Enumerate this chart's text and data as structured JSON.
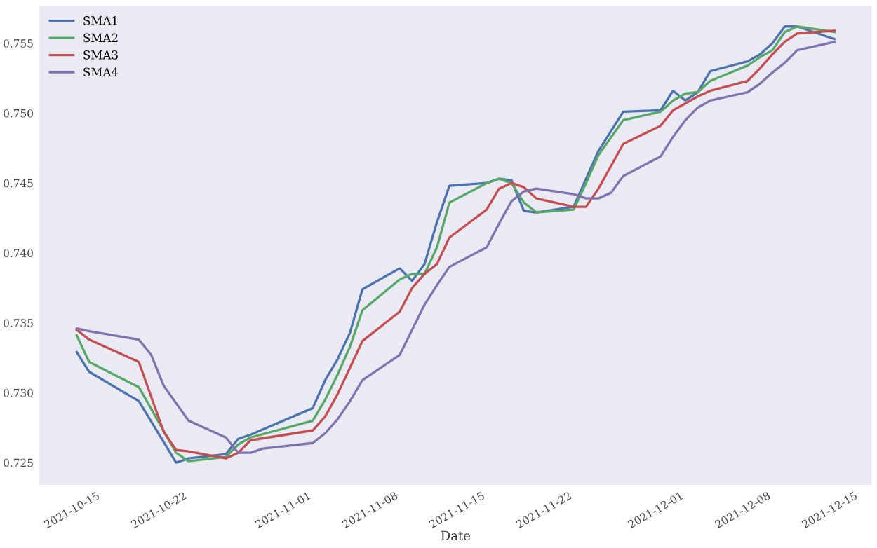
{
  "chart_data": {
    "type": "line",
    "xlabel": "Date",
    "legend": "top left",
    "grid": false,
    "xlim": [
      "2021-10-10",
      "2021-12-16"
    ],
    "ylim": [
      0.7234,
      0.7577
    ],
    "xticks": [
      "2021-10-15",
      "2021-10-22",
      "2021-11-01",
      "2021-11-08",
      "2021-11-15",
      "2021-11-22",
      "2021-12-01",
      "2021-12-08",
      "2021-12-15"
    ],
    "yticks": [
      0.725,
      {
        "value": 0.73,
        "label": "0.730"
      },
      0.735,
      {
        "value": 0.74,
        "label": "0.740"
      },
      0.745,
      {
        "value": 0.75,
        "label": "0.750"
      },
      0.755
    ],
    "series": [
      {
        "name": "SMA1",
        "color": "#4c72b0",
        "x": [
          "2021-10-13",
          "2021-10-14",
          "2021-10-18",
          "2021-10-21",
          "2021-10-22",
          "2021-10-25",
          "2021-10-26",
          "2021-10-27",
          "2021-11-01",
          "2021-11-02",
          "2021-11-03",
          "2021-11-04",
          "2021-11-05",
          "2021-11-08",
          "2021-11-09",
          "2021-11-10",
          "2021-11-11",
          "2021-11-12",
          "2021-11-15",
          "2021-11-16",
          "2021-11-17",
          "2021-11-18",
          "2021-11-19",
          "2021-11-22",
          "2021-11-23",
          "2021-11-24",
          "2021-11-26",
          "2021-11-29",
          "2021-11-30",
          "2021-12-01",
          "2021-12-02",
          "2021-12-03",
          "2021-12-06",
          "2021-12-07",
          "2021-12-08",
          "2021-12-09",
          "2021-12-10",
          "2021-12-13"
        ],
        "values": [
          0.7329,
          0.7315,
          0.7294,
          0.725,
          0.7253,
          0.7256,
          0.7267,
          0.727,
          0.7289,
          0.7309,
          0.7324,
          0.7343,
          0.7374,
          0.7389,
          0.738,
          0.7392,
          0.7422,
          0.7448,
          0.745,
          0.7453,
          0.7452,
          0.743,
          0.7429,
          0.7433,
          0.7453,
          0.7473,
          0.7501,
          0.7502,
          0.7516,
          0.7509,
          0.7515,
          0.753,
          0.7537,
          0.7542,
          0.755,
          0.7562,
          0.7562,
          0.7553
        ]
      },
      {
        "name": "SMA2",
        "color": "#55a868",
        "x": [
          "2021-10-13",
          "2021-10-14",
          "2021-10-18",
          "2021-10-21",
          "2021-10-22",
          "2021-10-25",
          "2021-10-26",
          "2021-10-27",
          "2021-11-01",
          "2021-11-02",
          "2021-11-03",
          "2021-11-04",
          "2021-11-05",
          "2021-11-08",
          "2021-11-09",
          "2021-11-10",
          "2021-11-11",
          "2021-11-12",
          "2021-11-15",
          "2021-11-16",
          "2021-11-17",
          "2021-11-18",
          "2021-11-19",
          "2021-11-22",
          "2021-11-23",
          "2021-11-24",
          "2021-11-26",
          "2021-11-29",
          "2021-11-30",
          "2021-12-01",
          "2021-12-02",
          "2021-12-03",
          "2021-12-06",
          "2021-12-07",
          "2021-12-08",
          "2021-12-09",
          "2021-12-10",
          "2021-12-13"
        ],
        "values": [
          0.7341,
          0.7322,
          0.7304,
          0.7257,
          0.7251,
          0.7254,
          0.7263,
          0.7268,
          0.728,
          0.7295,
          0.7313,
          0.7333,
          0.7359,
          0.7381,
          0.7385,
          0.7385,
          0.7404,
          0.7436,
          0.745,
          0.7453,
          0.745,
          0.7436,
          0.7429,
          0.7431,
          0.745,
          0.747,
          0.7495,
          0.7501,
          0.7509,
          0.7514,
          0.7515,
          0.7523,
          0.7534,
          0.754,
          0.7545,
          0.7558,
          0.7562,
          0.7558
        ]
      },
      {
        "name": "SMA3",
        "color": "#c44e52",
        "x": [
          "2021-10-13",
          "2021-10-14",
          "2021-10-18",
          "2021-10-20",
          "2021-10-21",
          "2021-10-22",
          "2021-10-25",
          "2021-10-26",
          "2021-10-27",
          "2021-11-01",
          "2021-11-02",
          "2021-11-03",
          "2021-11-04",
          "2021-11-05",
          "2021-11-08",
          "2021-11-09",
          "2021-11-10",
          "2021-11-11",
          "2021-11-12",
          "2021-11-15",
          "2021-11-16",
          "2021-11-17",
          "2021-11-18",
          "2021-11-19",
          "2021-11-22",
          "2021-11-23",
          "2021-11-24",
          "2021-11-26",
          "2021-11-29",
          "2021-11-30",
          "2021-12-01",
          "2021-12-02",
          "2021-12-03",
          "2021-12-06",
          "2021-12-07",
          "2021-12-08",
          "2021-12-09",
          "2021-12-10",
          "2021-12-13"
        ],
        "values": [
          0.7345,
          0.7338,
          0.7322,
          0.7272,
          0.7259,
          0.7258,
          0.7253,
          0.7257,
          0.7266,
          0.7273,
          0.7283,
          0.7299,
          0.7318,
          0.7337,
          0.7358,
          0.7375,
          0.7385,
          0.7392,
          0.7411,
          0.7431,
          0.7446,
          0.745,
          0.7447,
          0.7439,
          0.7433,
          0.7433,
          0.7446,
          0.7478,
          0.7491,
          0.7502,
          0.7507,
          0.7512,
          0.7516,
          0.7523,
          0.7532,
          0.7542,
          0.7551,
          0.7557,
          0.7559
        ]
      },
      {
        "name": "SMA4",
        "color": "#8172b2",
        "x": [
          "2021-10-13",
          "2021-10-14",
          "2021-10-18",
          "2021-10-19",
          "2021-10-20",
          "2021-10-22",
          "2021-10-25",
          "2021-10-26",
          "2021-10-27",
          "2021-10-28",
          "2021-11-01",
          "2021-11-02",
          "2021-11-03",
          "2021-11-04",
          "2021-11-05",
          "2021-11-08",
          "2021-11-09",
          "2021-11-10",
          "2021-11-11",
          "2021-11-12",
          "2021-11-15",
          "2021-11-16",
          "2021-11-17",
          "2021-11-18",
          "2021-11-19",
          "2021-11-22",
          "2021-11-23",
          "2021-11-24",
          "2021-11-25",
          "2021-11-26",
          "2021-11-29",
          "2021-11-30",
          "2021-12-01",
          "2021-12-02",
          "2021-12-03",
          "2021-12-06",
          "2021-12-07",
          "2021-12-08",
          "2021-12-09",
          "2021-12-10",
          "2021-12-13"
        ],
        "values": [
          0.7346,
          0.7344,
          0.7338,
          0.7327,
          0.7305,
          0.728,
          0.7268,
          0.7257,
          0.7257,
          0.726,
          0.7264,
          0.7271,
          0.7281,
          0.7294,
          0.7309,
          0.7327,
          0.7345,
          0.7363,
          0.7377,
          0.739,
          0.7404,
          0.7421,
          0.7437,
          0.7444,
          0.7446,
          0.7442,
          0.7439,
          0.7439,
          0.7443,
          0.7455,
          0.7469,
          0.7483,
          0.7495,
          0.7504,
          0.7509,
          0.7515,
          0.7521,
          0.7529,
          0.7536,
          0.7545,
          0.7551
        ]
      }
    ]
  }
}
